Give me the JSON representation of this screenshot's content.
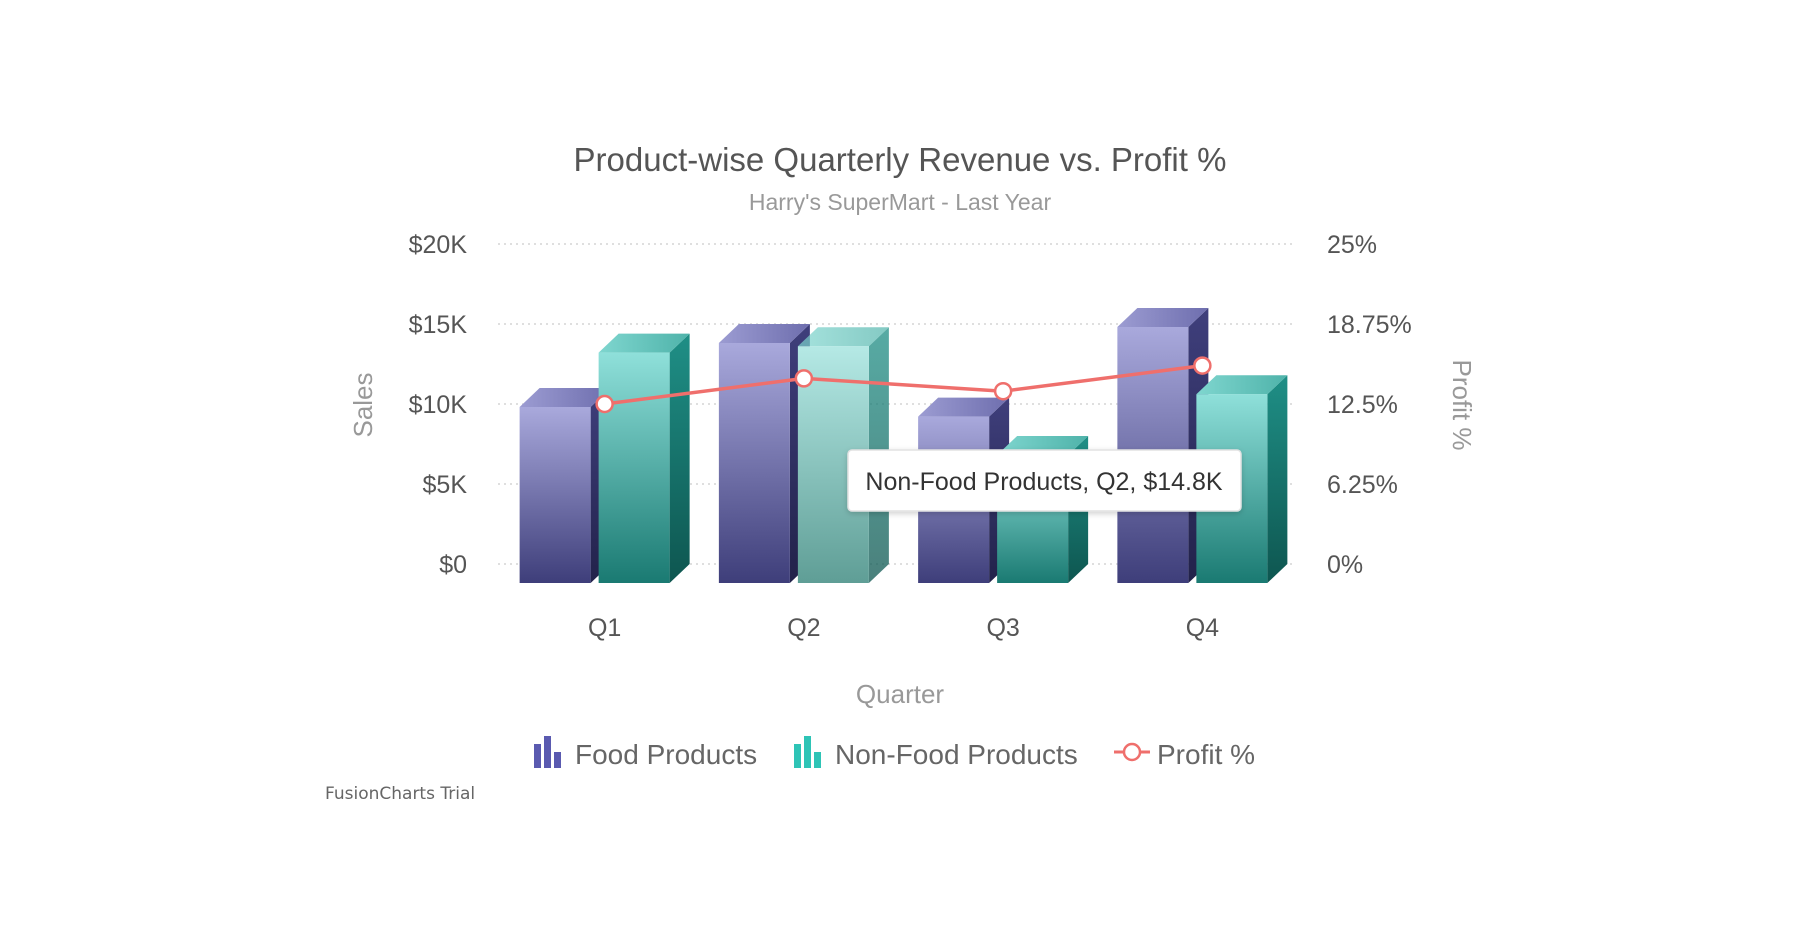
{
  "chart_data": {
    "type": "bar",
    "title": "Product-wise Quarterly Revenue vs. Profit %",
    "subtitle": "Harry's SuperMart - Last Year",
    "xlabel": "Quarter",
    "ylabel": "Sales",
    "y2label": "Profit %",
    "categories": [
      "Q1",
      "Q2",
      "Q3",
      "Q4"
    ],
    "ylim": [
      0,
      20000
    ],
    "y2lim": [
      0,
      25
    ],
    "y_ticks": [
      "$0",
      "$5K",
      "$10K",
      "$15K",
      "$20K"
    ],
    "y2_ticks": [
      "0%",
      "6.25%",
      "12.5%",
      "18.75%",
      "25%"
    ],
    "grid": true,
    "legend_position": "bottom",
    "series": [
      {
        "name": "Food Products",
        "type": "bar",
        "axis": "primary",
        "values": [
          11000,
          15000,
          10400,
          16000
        ]
      },
      {
        "name": "Non-Food Products",
        "type": "bar",
        "axis": "primary",
        "values": [
          14400,
          14800,
          8000,
          11800
        ]
      },
      {
        "name": "Profit %",
        "type": "line",
        "axis": "secondary",
        "values": [
          12.5,
          14.5,
          13.5,
          15.5
        ]
      }
    ],
    "colors": {
      "food_top": "#a9a9dc",
      "food_bottom": "#3e3e7a",
      "food_side": "#2e2e5c",
      "nonfood_top": "#8fe0da",
      "nonfood_bottom": "#1a7a72",
      "nonfood_side": "#146a62",
      "line": "#ef6f6c",
      "grid": "#cccccc"
    },
    "tooltip": {
      "text": "Non-Food Products, Q2, $14.8K",
      "series_index": 1,
      "category_index": 1
    }
  },
  "watermark": "FusionCharts Trial"
}
